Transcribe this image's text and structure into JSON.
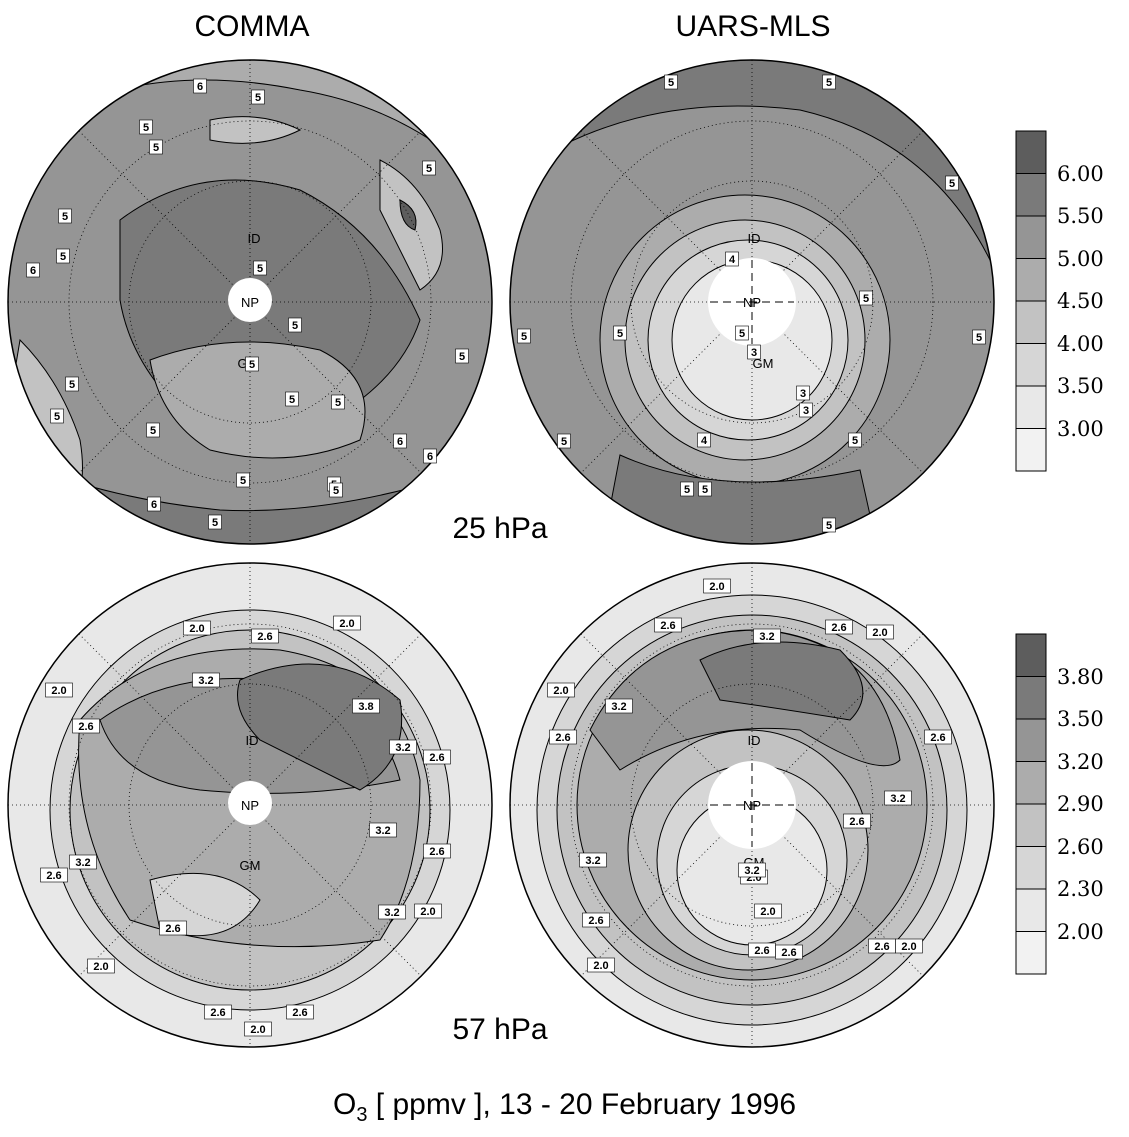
{
  "titles": {
    "left": "COMMA",
    "right": "UARS-MLS"
  },
  "levels": {
    "top": "25 hPa",
    "bottom": "57 hPa"
  },
  "caption": {
    "species": "O",
    "subscript": "3",
    "rest": " [ ppmv ],  13 - 20 February 1996"
  },
  "map_labels": {
    "pole": "NP",
    "date_line": "ID",
    "greenwich": "GM"
  },
  "colorbars": {
    "top": {
      "levels": [
        "6.00",
        "5.50",
        "5.00",
        "4.50",
        "4.00",
        "3.50",
        "3.00"
      ],
      "colors": [
        "#5d5d5d",
        "#7a7a7a",
        "#959595",
        "#acacac",
        "#c2c2c2",
        "#d6d6d6",
        "#e8e8e8"
      ]
    },
    "bottom": {
      "levels": [
        "3.80",
        "3.50",
        "3.20",
        "2.90",
        "2.60",
        "2.30",
        "2.00"
      ],
      "colors": [
        "#5d5d5d",
        "#7a7a7a",
        "#959595",
        "#acacac",
        "#c2c2c2",
        "#d6d6d6",
        "#e8e8e8"
      ]
    }
  },
  "contour_labels": {
    "comma_25": [
      "6",
      "5",
      "5",
      "5",
      "5",
      "5",
      "5",
      "6",
      "5",
      "5",
      "5",
      "5",
      "5",
      "5",
      "5",
      "5",
      "5",
      "6",
      "5",
      "6",
      "5",
      "5",
      "5",
      "6"
    ],
    "mls_25": [
      "5",
      "5",
      "5",
      "5",
      "4",
      "5",
      "5",
      "3",
      "3",
      "3",
      "5",
      "5",
      "4",
      "5",
      "5",
      "5",
      "5",
      "5"
    ],
    "comma_57": [
      "2.0",
      "2.6",
      "2.0",
      "3.2",
      "2.0",
      "2.6",
      "3.8",
      "3.2",
      "2.6",
      "3.2",
      "2.6",
      "3.2",
      "2.6",
      "3.2",
      "2.0",
      "2.6",
      "2.0",
      "2.6",
      "2.6",
      "2.0"
    ],
    "mls_57": [
      "2.0",
      "2.6",
      "3.2",
      "2.6",
      "2.0",
      "2.0",
      "3.2",
      "2.6",
      "2.6",
      "3.2",
      "2.6",
      "3.2",
      "2.0",
      "2.0",
      "2.6",
      "2.6",
      "2.0",
      "2.6",
      "2.0",
      "3.2",
      "2.6"
    ]
  }
}
